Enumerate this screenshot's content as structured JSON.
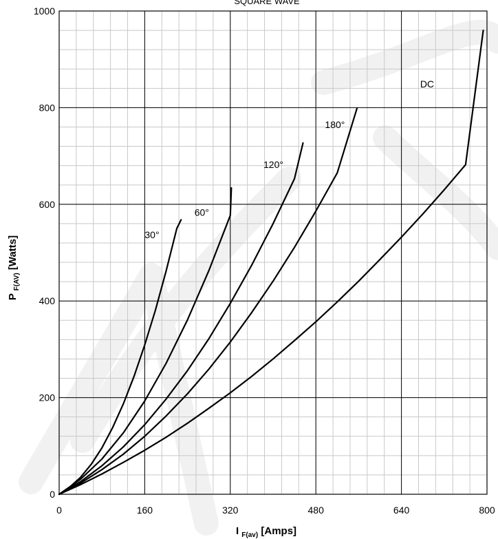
{
  "chart_data": {
    "type": "line",
    "title": "SQUARE WAVE",
    "xlabel_main": "I",
    "xlabel_sub": "F(av)",
    "xlabel_rest": " [Amps]",
    "ylabel_main": "P",
    "ylabel_sub": "F(AV)",
    "ylabel_rest": " [Watts]",
    "xlim": [
      0,
      800
    ],
    "ylim": [
      0,
      1000
    ],
    "x_ticks": [
      0,
      160,
      320,
      480,
      640,
      800
    ],
    "y_ticks": [
      0,
      200,
      400,
      600,
      800,
      1000
    ],
    "x_tick_labels": [
      "0",
      "160",
      "320",
      "480",
      "640",
      "800"
    ],
    "y_tick_labels": [
      "0",
      "200",
      "400",
      "600",
      "800",
      "1000"
    ],
    "x_minor_step": 32,
    "y_minor_step": 40,
    "grid": true,
    "series": [
      {
        "name": "30°",
        "x": [
          0,
          20,
          40,
          60,
          80,
          100,
          120,
          140,
          160,
          180,
          200,
          220,
          228
        ],
        "y": [
          0,
          15,
          35,
          62,
          96,
          138,
          187,
          244,
          309,
          381,
          462,
          550,
          568
        ]
      },
      {
        "name": "60°",
        "x": [
          0,
          40,
          80,
          120,
          160,
          200,
          240,
          280,
          320,
          322
        ],
        "y": [
          0,
          31,
          73,
          127,
          193,
          271,
          361,
          463,
          577,
          634
        ]
      },
      {
        "name": "120°",
        "x": [
          0,
          40,
          80,
          120,
          160,
          200,
          240,
          280,
          320,
          360,
          400,
          440,
          456
        ],
        "y": [
          0,
          26,
          59,
          98,
          144,
          197,
          256,
          322,
          395,
          474,
          560,
          653,
          727
        ]
      },
      {
        "name": "180°",
        "x": [
          0,
          40,
          80,
          120,
          160,
          200,
          240,
          280,
          320,
          360,
          400,
          440,
          480,
          520,
          557
        ],
        "y": [
          0,
          23,
          51,
          83,
          120,
          162,
          208,
          259,
          315,
          376,
          441,
          511,
          586,
          665,
          799
        ]
      },
      {
        "name": "DC",
        "x": [
          0,
          40,
          80,
          120,
          160,
          200,
          240,
          280,
          320,
          360,
          400,
          440,
          480,
          520,
          560,
          600,
          640,
          680,
          720,
          760,
          793
        ],
        "y": [
          0,
          20,
          42,
          66,
          91,
          118,
          147,
          178,
          210,
          244,
          280,
          318,
          357,
          398,
          441,
          486,
          532,
          580,
          630,
          682,
          960
        ]
      }
    ],
    "curve_labels": [
      {
        "text": "30°",
        "x": 160,
        "y": 530
      },
      {
        "text": "60°",
        "x": 253,
        "y": 576
      },
      {
        "text": "120°",
        "x": 382,
        "y": 675
      },
      {
        "text": "180°",
        "x": 497,
        "y": 758
      },
      {
        "text": "DC",
        "x": 675,
        "y": 842
      }
    ]
  }
}
